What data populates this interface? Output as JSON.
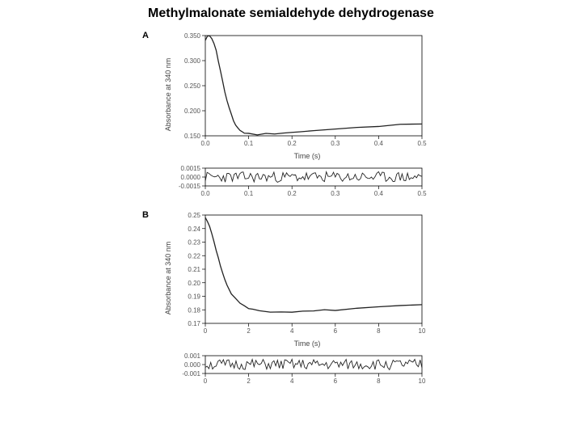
{
  "title": "Methylmalonate semialdehyde dehydrogenase",
  "panelA": {
    "label": "A",
    "main": {
      "type": "line",
      "ylabel": "Absorbance at 340 nm",
      "xlabel": "Time (s)",
      "xlim": [
        0.0,
        0.5
      ],
      "ylim": [
        0.15,
        0.35
      ],
      "xticks": [
        0.0,
        0.1,
        0.2,
        0.3,
        0.4,
        0.5
      ],
      "yticks": [
        0.15,
        0.2,
        0.25,
        0.3,
        0.35
      ],
      "background": "#ffffff",
      "line_color": "#222222",
      "line_width": 1.3,
      "data": [
        [
          0.0,
          0.34
        ],
        [
          0.005,
          0.348
        ],
        [
          0.01,
          0.35
        ],
        [
          0.015,
          0.345
        ],
        [
          0.02,
          0.335
        ],
        [
          0.025,
          0.32
        ],
        [
          0.03,
          0.3
        ],
        [
          0.035,
          0.28
        ],
        [
          0.04,
          0.258
        ],
        [
          0.045,
          0.238
        ],
        [
          0.05,
          0.22
        ],
        [
          0.055,
          0.205
        ],
        [
          0.06,
          0.192
        ],
        [
          0.065,
          0.18
        ],
        [
          0.07,
          0.172
        ],
        [
          0.075,
          0.166
        ],
        [
          0.08,
          0.161
        ],
        [
          0.085,
          0.158
        ],
        [
          0.09,
          0.156
        ],
        [
          0.1,
          0.154
        ],
        [
          0.12,
          0.153
        ],
        [
          0.14,
          0.154
        ],
        [
          0.16,
          0.155
        ],
        [
          0.18,
          0.156
        ],
        [
          0.2,
          0.157
        ],
        [
          0.22,
          0.158
        ],
        [
          0.25,
          0.16
        ],
        [
          0.3,
          0.163
        ],
        [
          0.35,
          0.166
        ],
        [
          0.4,
          0.169
        ],
        [
          0.45,
          0.172
        ],
        [
          0.5,
          0.175
        ]
      ],
      "noise_amp": 0.003
    },
    "residual": {
      "type": "line",
      "xlim": [
        0.0,
        0.5
      ],
      "ylim": [
        -0.0015,
        0.0015
      ],
      "xticks": [
        0.0,
        0.1,
        0.2,
        0.3,
        0.4,
        0.5
      ],
      "yticks": [
        -0.0015,
        0.0,
        0.0015
      ],
      "ytick_labels": [
        "-0.0015",
        "0.0000",
        "0.0015"
      ],
      "line_color": "#222222",
      "noise_amp": 0.0009
    }
  },
  "panelB": {
    "label": "B",
    "main": {
      "type": "line",
      "ylabel": "Absorbance at 340 nm",
      "xlabel": "Time (s)",
      "xlim": [
        0,
        10
      ],
      "ylim": [
        0.17,
        0.25
      ],
      "xticks": [
        0,
        2,
        4,
        6,
        8,
        10
      ],
      "yticks": [
        0.17,
        0.18,
        0.19,
        0.2,
        0.21,
        0.22,
        0.23,
        0.24,
        0.25
      ],
      "background": "#ffffff",
      "line_color": "#222222",
      "line_width": 1.3,
      "data": [
        [
          0.0,
          0.248
        ],
        [
          0.1,
          0.245
        ],
        [
          0.2,
          0.241
        ],
        [
          0.3,
          0.236
        ],
        [
          0.4,
          0.23
        ],
        [
          0.5,
          0.224
        ],
        [
          0.6,
          0.218
        ],
        [
          0.7,
          0.212
        ],
        [
          0.8,
          0.207
        ],
        [
          0.9,
          0.202
        ],
        [
          1.0,
          0.198
        ],
        [
          1.2,
          0.192
        ],
        [
          1.4,
          0.188
        ],
        [
          1.6,
          0.185
        ],
        [
          1.8,
          0.183
        ],
        [
          2.0,
          0.181
        ],
        [
          2.2,
          0.18
        ],
        [
          2.5,
          0.179
        ],
        [
          3.0,
          0.178
        ],
        [
          3.5,
          0.178
        ],
        [
          4.0,
          0.178
        ],
        [
          4.5,
          0.179
        ],
        [
          5.0,
          0.179
        ],
        [
          5.5,
          0.18
        ],
        [
          6.0,
          0.18
        ],
        [
          7.0,
          0.181
        ],
        [
          8.0,
          0.182
        ],
        [
          9.0,
          0.183
        ],
        [
          10.0,
          0.184
        ]
      ],
      "noise_amp": 0.001
    },
    "residual": {
      "type": "line",
      "xlim": [
        0,
        10
      ],
      "ylim": [
        -0.001,
        0.001
      ],
      "xticks": [
        0,
        2,
        4,
        6,
        8,
        10
      ],
      "yticks": [
        -0.001,
        0.0,
        0.001
      ],
      "ytick_labels": [
        "-0.001",
        "0.000",
        "0.001"
      ],
      "line_color": "#222222",
      "noise_amp": 0.0006
    }
  }
}
